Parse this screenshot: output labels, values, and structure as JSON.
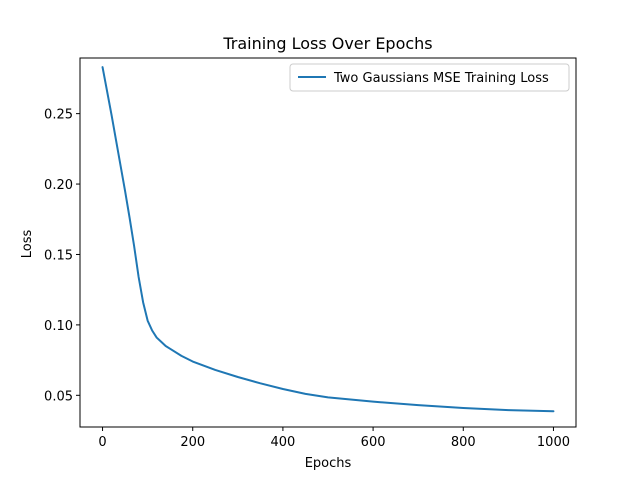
{
  "chart_data": {
    "type": "line",
    "title": "Training Loss Over Epochs",
    "xlabel": "Epochs",
    "ylabel": "Loss",
    "xlim": [
      -50,
      1050
    ],
    "ylim": [
      0.0275,
      0.2895
    ],
    "xticks": [
      0,
      200,
      400,
      600,
      800,
      1000
    ],
    "xtick_labels": [
      "0",
      "200",
      "400",
      "600",
      "800",
      "1000"
    ],
    "yticks": [
      0.05,
      0.1,
      0.15,
      0.2,
      0.25
    ],
    "ytick_labels": [
      "0.05",
      "0.10",
      "0.15",
      "0.20",
      "0.25"
    ],
    "grid": false,
    "legend_position": "top-right",
    "series": [
      {
        "name": "Two Gaussians MSE Training Loss",
        "color": "#1f77b4",
        "x": [
          0,
          10,
          20,
          30,
          40,
          50,
          60,
          70,
          80,
          90,
          100,
          110,
          120,
          130,
          140,
          150,
          175,
          200,
          250,
          300,
          350,
          400,
          450,
          500,
          600,
          700,
          800,
          900,
          1000
        ],
        "y": [
          0.283,
          0.266,
          0.249,
          0.231,
          0.213,
          0.195,
          0.176,
          0.156,
          0.134,
          0.116,
          0.103,
          0.096,
          0.091,
          0.088,
          0.085,
          0.083,
          0.078,
          0.074,
          0.068,
          0.063,
          0.0585,
          0.0545,
          0.051,
          0.0485,
          0.0455,
          0.043,
          0.041,
          0.0395,
          0.0387
        ]
      }
    ]
  }
}
